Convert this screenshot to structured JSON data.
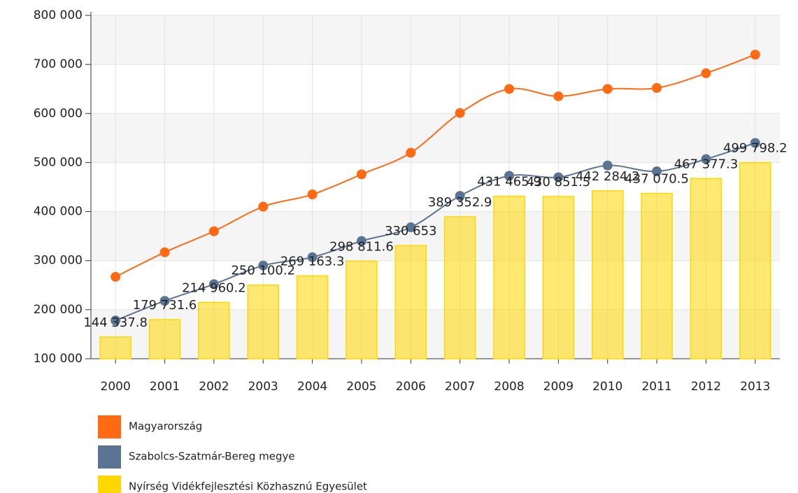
{
  "chart_data": {
    "type": "combo",
    "categories": [
      "2000",
      "2001",
      "2002",
      "2003",
      "2004",
      "2005",
      "2006",
      "2007",
      "2008",
      "2009",
      "2010",
      "2011",
      "2012",
      "2013"
    ],
    "series": [
      {
        "name": "Magyarország",
        "type": "line",
        "color": "#ff6a13",
        "values": [
          267000,
          317000,
          360000,
          410000,
          435000,
          476000,
          520000,
          601000,
          650000,
          635000,
          650000,
          652000,
          682000,
          720000
        ]
      },
      {
        "name": "Szabolcs-Szatmár-Bereg megye",
        "type": "line",
        "color": "#5b7494",
        "values": [
          178000,
          218000,
          252000,
          290000,
          307000,
          340000,
          368000,
          432000,
          473000,
          470000,
          494000,
          482000,
          507000,
          540000
        ]
      },
      {
        "name": "Nyírség Vidékfejlesztési Közhasznú Egyesület",
        "type": "bar",
        "color": "#ffd700",
        "values": [
          144337.8,
          179731.6,
          214960.2,
          250100.2,
          269163.3,
          298811.6,
          330653,
          389352.9,
          431465.9,
          430851.5,
          442284.2,
          437070.5,
          467377.3,
          499798.2
        ],
        "value_labels": [
          "144 337.8",
          "179 731.6",
          "214 960.2",
          "250 100.2",
          "269 163.3",
          "298 811.6",
          "330 653",
          "389 352.9",
          "431 465.9",
          "430 851.5",
          "442 284.2",
          "437 070.5",
          "467 377.3",
          "499 798.2"
        ]
      }
    ],
    "ylim": [
      100000,
      800000
    ],
    "yticks": [
      {
        "value": 100000,
        "label": "100 000"
      },
      {
        "value": 200000,
        "label": "200 000"
      },
      {
        "value": 300000,
        "label": "300 000"
      },
      {
        "value": 400000,
        "label": "400 000"
      },
      {
        "value": 500000,
        "label": "500 000"
      },
      {
        "value": 600000,
        "label": "600 000"
      },
      {
        "value": 700000,
        "label": "700 000"
      },
      {
        "value": 800000,
        "label": "800 000"
      }
    ],
    "grid": true,
    "legend": "bottom-left"
  }
}
